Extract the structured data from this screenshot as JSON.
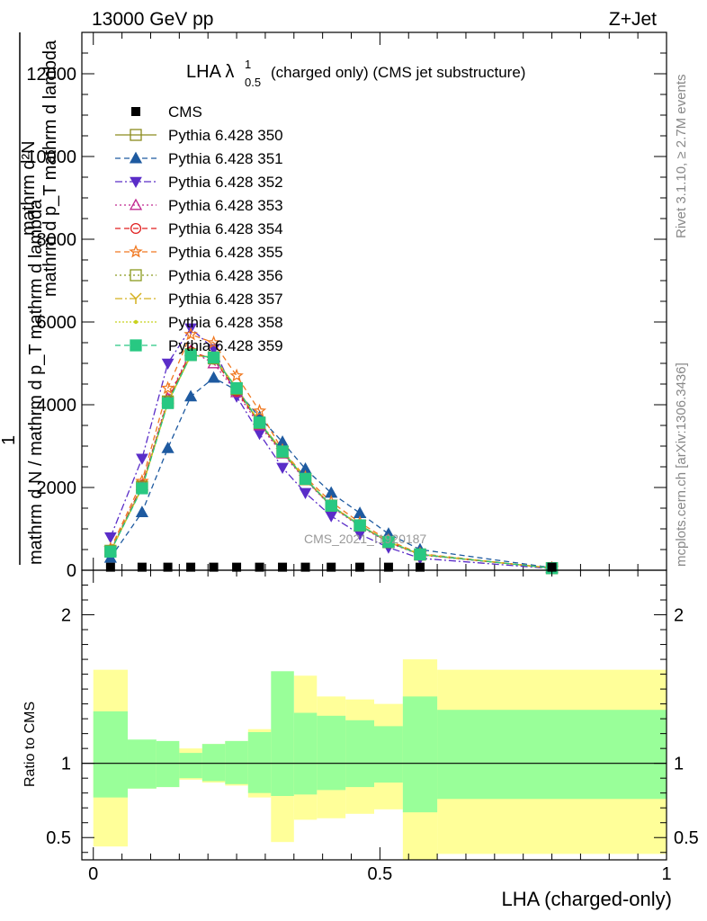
{
  "header": {
    "left": "13000 GeV pp",
    "right": "Z+Jet"
  },
  "side_labels": {
    "rivet": "Rivet 3.1.10, ≥ 2.7M events",
    "mcplots": "mcplots.cern.ch [arXiv:1306.3436]"
  },
  "chart_data": {
    "type": "line",
    "title": "LHA λ¹₀.₅ (charged only) (CMS jet substructure)",
    "title_main": "LHA λ",
    "title_sup": "1",
    "title_sub": "0.5",
    "title_rest": "(charged only) (CMS jet substructure)",
    "watermark": "CMS_2021_I1920187",
    "ylabel_upper": "mathrm d²N",
    "ylabel_middle": "mathrm d p_T mathrm d lambda",
    "ylabel_lower": "mathrm d N / mathrm d p_T mathrm d lambda",
    "ylabel_one": "1",
    "xlabel": "LHA (charged-only)",
    "ratio_ylabel": "Ratio to CMS",
    "xlim": [
      -0.02,
      1.0
    ],
    "ylim": [
      0,
      13000
    ],
    "ratio_ylim": [
      0.35,
      2.3
    ],
    "x_ticks": [
      "0",
      "0.5",
      "1"
    ],
    "y_ticks": [
      "0",
      "2000",
      "4000",
      "6000",
      "8000",
      "10000",
      "12000"
    ],
    "ratio_ticks": [
      "0.5",
      "1",
      "2"
    ],
    "x": [
      0.03,
      0.085,
      0.13,
      0.17,
      0.21,
      0.25,
      0.29,
      0.33,
      0.37,
      0.415,
      0.465,
      0.515,
      0.57,
      0.8
    ],
    "data": {
      "name": "CMS",
      "values": [
        30,
        30,
        30,
        30,
        30,
        30,
        30,
        30,
        30,
        30,
        30,
        30,
        30,
        30
      ]
    },
    "series": [
      {
        "name": "Pythia 6.428 350",
        "color": "#8c8c1e",
        "dash": "",
        "marker": "square-open",
        "values": [
          450,
          2000,
          4050,
          5200,
          5150,
          4400,
          3550,
          2850,
          2200,
          1550,
          1080,
          680,
          380,
          50
        ]
      },
      {
        "name": "Pythia 6.428 351",
        "color": "#1e5aa0",
        "dash": "6,4",
        "marker": "triangle",
        "values": [
          300,
          1400,
          2950,
          4200,
          4650,
          4350,
          3700,
          3100,
          2450,
          1870,
          1380,
          880,
          500,
          60
        ]
      },
      {
        "name": "Pythia 6.428 352",
        "color": "#5a2dc8",
        "dash": "8,3,2,3",
        "marker": "triangle-down",
        "values": [
          800,
          2700,
          5000,
          5850,
          5350,
          4200,
          3300,
          2480,
          1870,
          1310,
          870,
          550,
          290,
          40
        ]
      },
      {
        "name": "Pythia 6.428 353",
        "color": "#c02890",
        "dash": "2,3",
        "marker": "triangle-open",
        "values": [
          480,
          2050,
          4150,
          5300,
          5000,
          4300,
          3500,
          2820,
          2180,
          1540,
          1060,
          670,
          370,
          50
        ]
      },
      {
        "name": "Pythia 6.428 354",
        "color": "#e01e1e",
        "dash": "6,4",
        "marker": "circle-open",
        "values": [
          460,
          2050,
          4100,
          5280,
          5100,
          4330,
          3560,
          2870,
          2210,
          1570,
          1090,
          690,
          385,
          50
        ]
      },
      {
        "name": "Pythia 6.428 355",
        "color": "#f07820",
        "dash": "6,4",
        "marker": "star-open",
        "values": [
          520,
          2150,
          4400,
          5700,
          5500,
          4700,
          3850,
          2900,
          2250,
          1650,
          1150,
          720,
          400,
          50
        ]
      },
      {
        "name": "Pythia 6.428 356",
        "color": "#8a9a1e",
        "dash": "2,3",
        "marker": "square-open",
        "values": [
          470,
          2020,
          4080,
          5220,
          5120,
          4380,
          3560,
          2860,
          2200,
          1560,
          1080,
          680,
          380,
          50
        ]
      },
      {
        "name": "Pythia 6.428 357",
        "color": "#d4b01e",
        "dash": "8,3,2,3",
        "marker": "y-mark",
        "values": [
          460,
          2000,
          4060,
          5200,
          5150,
          4400,
          3580,
          2880,
          2210,
          1560,
          1090,
          690,
          385,
          50
        ]
      },
      {
        "name": "Pythia 6.428 358",
        "color": "#c8d21e",
        "dash": "2,2",
        "marker": "dot",
        "values": [
          455,
          1990,
          4050,
          5180,
          5160,
          4410,
          3590,
          2890,
          2220,
          1570,
          1095,
          695,
          388,
          50
        ]
      },
      {
        "name": "Pythia 6.428 359",
        "color": "#28c882",
        "dash": "6,4",
        "marker": "square",
        "values": [
          450,
          1980,
          4040,
          5200,
          5140,
          4400,
          3570,
          2870,
          2210,
          1560,
          1085,
          685,
          382,
          50
        ]
      }
    ],
    "ratio_bins": [
      {
        "lo": 0.0,
        "hi": 0.06,
        "inner": [
          0.77,
          1.35
        ],
        "outer": [
          0.44,
          1.63
        ]
      },
      {
        "lo": 0.06,
        "hi": 0.11,
        "inner": [
          0.83,
          1.16
        ],
        "outer": [
          0.83,
          1.14
        ]
      },
      {
        "lo": 0.11,
        "hi": 0.15,
        "inner": [
          0.84,
          1.15
        ],
        "outer": [
          0.84,
          1.13
        ]
      },
      {
        "lo": 0.15,
        "hi": 0.19,
        "inner": [
          0.9,
          1.07
        ],
        "outer": [
          0.89,
          1.1
        ]
      },
      {
        "lo": 0.19,
        "hi": 0.23,
        "inner": [
          0.88,
          1.13
        ],
        "outer": [
          0.87,
          1.13
        ]
      },
      {
        "lo": 0.23,
        "hi": 0.27,
        "inner": [
          0.86,
          1.15
        ],
        "outer": [
          0.85,
          1.15
        ]
      },
      {
        "lo": 0.27,
        "hi": 0.31,
        "inner": [
          0.8,
          1.21
        ],
        "outer": [
          0.77,
          1.23
        ]
      },
      {
        "lo": 0.31,
        "hi": 0.35,
        "inner": [
          0.78,
          1.62
        ],
        "outer": [
          0.47,
          1.22
        ]
      },
      {
        "lo": 0.35,
        "hi": 0.39,
        "inner": [
          0.79,
          1.34
        ],
        "outer": [
          0.62,
          1.59
        ]
      },
      {
        "lo": 0.39,
        "hi": 0.44,
        "inner": [
          0.82,
          1.32
        ],
        "outer": [
          0.63,
          1.45
        ]
      },
      {
        "lo": 0.44,
        "hi": 0.49,
        "inner": [
          0.84,
          1.29
        ],
        "outer": [
          0.66,
          1.43
        ]
      },
      {
        "lo": 0.49,
        "hi": 0.54,
        "inner": [
          0.87,
          1.25
        ],
        "outer": [
          0.69,
          1.4
        ]
      },
      {
        "lo": 0.54,
        "hi": 0.6,
        "inner": [
          0.67,
          1.45
        ],
        "outer": [
          0.35,
          1.7
        ]
      },
      {
        "lo": 0.6,
        "hi": 1.0,
        "inner": [
          0.76,
          1.36
        ],
        "outer": [
          0.39,
          1.63
        ]
      }
    ]
  }
}
